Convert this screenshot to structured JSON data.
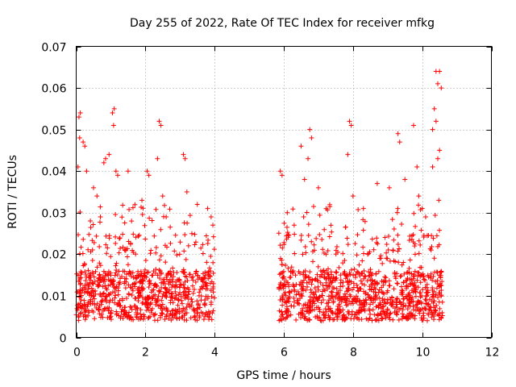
{
  "chart_data": {
    "type": "scatter",
    "title": "Day 255 of 2022, Rate Of TEC Index for receiver mfkg",
    "xlabel": "GPS time / hours",
    "ylabel": "ROTI / TECUs",
    "xlim": [
      0,
      12
    ],
    "ylim": [
      0,
      0.07
    ],
    "x_ticks": [
      "0",
      "2",
      "4",
      "6",
      "8",
      "10",
      "12"
    ],
    "y_ticks": [
      "0",
      "0.01",
      "0.02",
      "0.03",
      "0.04",
      "0.05",
      "0.06",
      "0.07"
    ],
    "x_tick_values": [
      0,
      2,
      4,
      6,
      8,
      10,
      12
    ],
    "y_tick_values": [
      0,
      0.01,
      0.02,
      0.03,
      0.04,
      0.05,
      0.06,
      0.07
    ],
    "grid": true,
    "marker": "+",
    "color": "#ff0000",
    "series": [
      {
        "name": "ROTI",
        "segments": [
          {
            "x_start": 0.0,
            "x_end": 4.0
          },
          {
            "x_start": 5.85,
            "x_end": 10.6
          }
        ],
        "baseline_range": [
          0.004,
          0.016
        ],
        "typical_max": 0.025,
        "points": [
          [
            0.05,
            0.041
          ],
          [
            0.08,
            0.053
          ],
          [
            0.12,
            0.054
          ],
          [
            0.1,
            0.048
          ],
          [
            0.2,
            0.047
          ],
          [
            0.25,
            0.046
          ],
          [
            0.3,
            0.04
          ],
          [
            0.5,
            0.036
          ],
          [
            0.6,
            0.034
          ],
          [
            0.7,
            0.029
          ],
          [
            0.8,
            0.042
          ],
          [
            0.85,
            0.043
          ],
          [
            0.95,
            0.044
          ],
          [
            1.05,
            0.054
          ],
          [
            1.1,
            0.055
          ],
          [
            1.08,
            0.051
          ],
          [
            1.15,
            0.04
          ],
          [
            1.2,
            0.039
          ],
          [
            1.5,
            0.04
          ],
          [
            1.6,
            0.028
          ],
          [
            1.9,
            0.033
          ],
          [
            2.05,
            0.04
          ],
          [
            2.1,
            0.039
          ],
          [
            2.4,
            0.052
          ],
          [
            2.45,
            0.051
          ],
          [
            2.35,
            0.043
          ],
          [
            2.5,
            0.034
          ],
          [
            2.6,
            0.029
          ],
          [
            3.1,
            0.044
          ],
          [
            3.15,
            0.043
          ],
          [
            3.2,
            0.035
          ],
          [
            3.5,
            0.032
          ],
          [
            3.8,
            0.031
          ],
          [
            3.9,
            0.029
          ],
          [
            3.95,
            0.027
          ],
          [
            5.9,
            0.04
          ],
          [
            5.95,
            0.039
          ],
          [
            6.1,
            0.03
          ],
          [
            6.3,
            0.027
          ],
          [
            6.5,
            0.046
          ],
          [
            6.7,
            0.043
          ],
          [
            6.75,
            0.05
          ],
          [
            6.8,
            0.048
          ],
          [
            6.6,
            0.038
          ],
          [
            7.0,
            0.036
          ],
          [
            7.9,
            0.052
          ],
          [
            7.95,
            0.051
          ],
          [
            7.85,
            0.044
          ],
          [
            8.0,
            0.034
          ],
          [
            8.3,
            0.031
          ],
          [
            8.7,
            0.037
          ],
          [
            9.05,
            0.036
          ],
          [
            9.3,
            0.049
          ],
          [
            9.35,
            0.047
          ],
          [
            9.5,
            0.038
          ],
          [
            9.75,
            0.051
          ],
          [
            9.85,
            0.041
          ],
          [
            9.9,
            0.034
          ],
          [
            10.0,
            0.031
          ],
          [
            10.1,
            0.029
          ],
          [
            10.3,
            0.05
          ],
          [
            10.35,
            0.055
          ],
          [
            10.4,
            0.064
          ],
          [
            10.45,
            0.061
          ],
          [
            10.5,
            0.064
          ],
          [
            10.55,
            0.06
          ],
          [
            10.5,
            0.045
          ],
          [
            10.45,
            0.043
          ],
          [
            10.4,
            0.052
          ],
          [
            10.3,
            0.041
          ],
          [
            10.48,
            0.033
          ]
        ]
      }
    ]
  }
}
